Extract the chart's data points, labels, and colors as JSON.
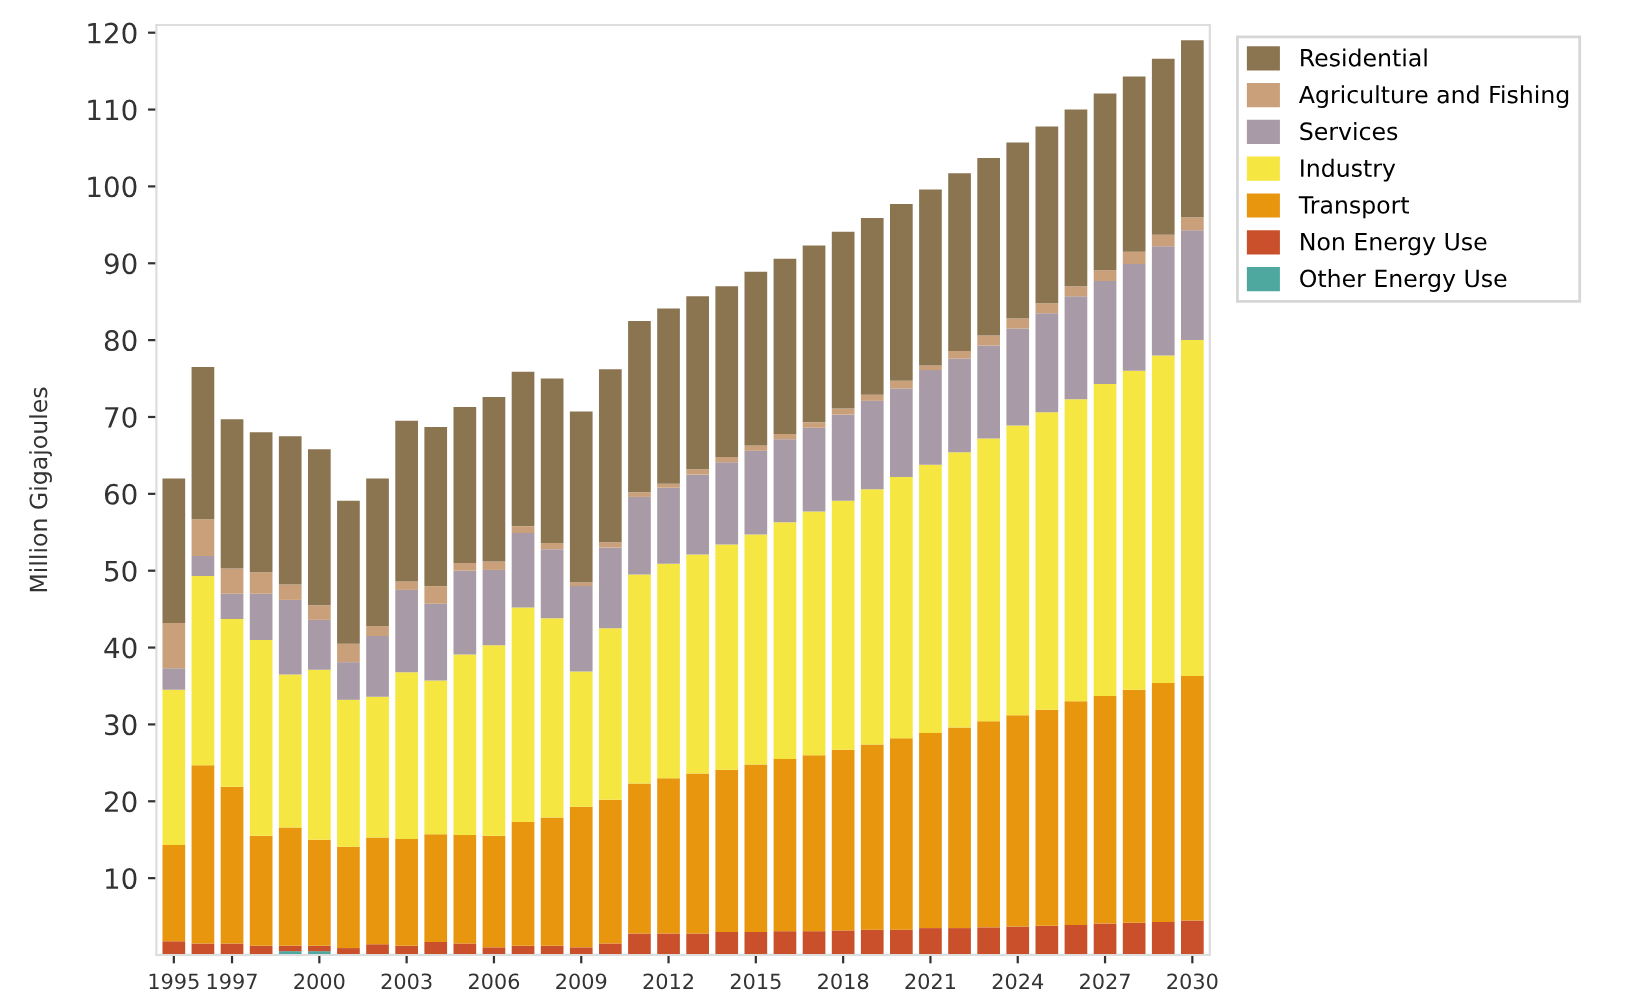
{
  "chart_data": {
    "type": "bar",
    "stacked": true,
    "ylabel": "Million Gigajoules",
    "categories": [
      "1995",
      null,
      "1997",
      null,
      null,
      "2000",
      null,
      null,
      "2003",
      null,
      null,
      "2006",
      null,
      null,
      "2009",
      null,
      null,
      "2012",
      null,
      null,
      "2015",
      null,
      null,
      "2018",
      null,
      null,
      "2021",
      null,
      null,
      "2024",
      null,
      null,
      "2027",
      null,
      null,
      "2030"
    ],
    "series": [
      {
        "name": "Other Energy Use",
        "color": "#4fa8a0",
        "values": [
          0,
          0,
          0,
          0,
          0.5,
          0.5,
          0,
          0,
          0,
          0,
          0,
          0,
          0,
          0,
          0,
          0,
          0,
          0,
          0,
          0,
          0,
          0,
          0,
          0,
          0,
          0,
          0,
          0,
          0,
          0,
          0,
          0,
          0,
          0,
          0,
          0
        ]
      },
      {
        "name": "Non Energy Use",
        "color": "#c9502a",
        "values": [
          1.8,
          1.5,
          1.5,
          1.2,
          0.7,
          0.7,
          0.9,
          1.4,
          1.2,
          1.7,
          1.5,
          1.0,
          1.2,
          1.2,
          1.0,
          1.5,
          2.8,
          2.8,
          2.8,
          3.0,
          3.0,
          3.1,
          3.1,
          3.2,
          3.3,
          3.3,
          3.5,
          3.5,
          3.6,
          3.7,
          3.8,
          3.9,
          4.1,
          4.2,
          4.3,
          4.5
        ]
      },
      {
        "name": "Transport",
        "color": "#e8960e",
        "values": [
          12.5,
          23.2,
          20.4,
          14.3,
          15.4,
          13.8,
          13.2,
          13.9,
          13.9,
          14.0,
          14.1,
          14.5,
          16.1,
          16.7,
          18.3,
          18.7,
          19.5,
          20.2,
          20.8,
          21.1,
          21.8,
          22.4,
          22.9,
          23.5,
          24.1,
          24.9,
          25.4,
          26.1,
          26.8,
          27.5,
          28.1,
          29.1,
          29.6,
          30.3,
          31.1,
          31.8
        ]
      },
      {
        "name": "Industry",
        "color": "#f5e642",
        "values": [
          20.2,
          24.6,
          21.8,
          25.5,
          19.9,
          22.1,
          19.1,
          18.3,
          21.7,
          20.0,
          23.5,
          24.8,
          27.9,
          25.9,
          17.6,
          22.3,
          27.2,
          27.9,
          28.5,
          29.3,
          29.9,
          30.8,
          31.7,
          32.4,
          33.2,
          34.0,
          34.9,
          35.8,
          36.8,
          37.7,
          38.7,
          39.3,
          40.6,
          41.5,
          42.6,
          43.7
        ]
      },
      {
        "name": "Services",
        "color": "#a89aa6",
        "values": [
          2.8,
          2.6,
          3.3,
          6.0,
          9.7,
          6.5,
          4.9,
          7.9,
          10.7,
          10.0,
          10.9,
          9.8,
          9.7,
          9.0,
          11.1,
          10.5,
          10.1,
          9.9,
          10.4,
          10.7,
          10.9,
          10.8,
          10.9,
          11.2,
          11.5,
          11.5,
          12.3,
          12.2,
          12.1,
          12.6,
          12.9,
          13.4,
          13.4,
          13.9,
          14.2,
          14.3
        ]
      },
      {
        "name": "Agriculture and Fishing",
        "color": "#c9a07a",
        "values": [
          5.9,
          4.8,
          3.3,
          2.8,
          2.0,
          1.9,
          2.4,
          1.3,
          1.1,
          2.3,
          1.0,
          1.1,
          0.9,
          0.8,
          0.5,
          0.7,
          0.6,
          0.5,
          0.7,
          0.7,
          0.7,
          0.7,
          0.7,
          0.8,
          0.8,
          1.0,
          0.6,
          1.0,
          1.3,
          1.3,
          1.3,
          1.3,
          1.4,
          1.6,
          1.5,
          1.7
        ]
      },
      {
        "name": "Residential",
        "color": "#8b7550",
        "values": [
          18.8,
          19.8,
          19.4,
          18.2,
          19.3,
          20.3,
          18.6,
          19.2,
          20.9,
          20.7,
          20.3,
          21.4,
          20.1,
          21.4,
          22.2,
          22.5,
          22.3,
          22.8,
          22.5,
          22.2,
          22.6,
          22.8,
          23.0,
          23.0,
          23.0,
          23.0,
          22.9,
          23.1,
          23.1,
          22.9,
          23.0,
          23.0,
          23.0,
          22.8,
          22.9,
          23.0
        ]
      }
    ],
    "ylim": [
      0,
      121
    ],
    "yticks": [
      10,
      20,
      30,
      40,
      50,
      60,
      70,
      80,
      90,
      100,
      110,
      120
    ],
    "legend": "top right"
  }
}
